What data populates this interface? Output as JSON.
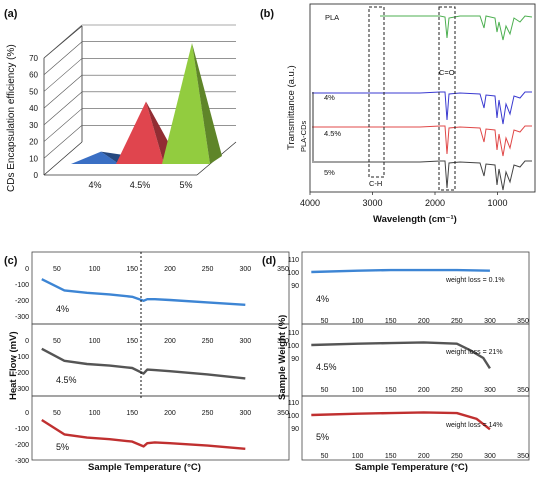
{
  "chart_data": [
    {
      "panel": "(a)",
      "type": "bar",
      "subtype": "3d-pyramid",
      "ylabel": "CDs Encapsulation efficiency (%)",
      "ylim": [
        0,
        70
      ],
      "yticks": [
        "0",
        "10",
        "20",
        "30",
        "40",
        "50",
        "60",
        "70"
      ],
      "categories": [
        "4%",
        "4.5%",
        "5%"
      ],
      "values": [
        5,
        35,
        70
      ],
      "colors": [
        "#3a6fc4",
        "#e0454e",
        "#92cc3f"
      ]
    },
    {
      "panel": "(b)",
      "type": "line",
      "xlabel": "Wavelength (cm⁻¹)",
      "ylabel": "Transmittance (a.u.)",
      "xlim": [
        4000,
        400
      ],
      "xticks": [
        "4000",
        "3000",
        "2000",
        "1000"
      ],
      "group_label": "PLA-CDs",
      "annotations": [
        "C-H",
        "C=O"
      ],
      "series": [
        {
          "name": "PLA",
          "color": "#4caf50"
        },
        {
          "name": "4%",
          "color": "#3a3ad0"
        },
        {
          "name": "4.5%",
          "color": "#e04848"
        },
        {
          "name": "5%",
          "color": "#444444"
        }
      ]
    },
    {
      "panel": "(c)",
      "type": "line",
      "xlabel": "Sample Temperature (°C)",
      "ylabel": "Heat Flow (mV)",
      "xticks": [
        "50",
        "100",
        "150",
        "200",
        "250",
        "300",
        "350"
      ],
      "yticks": [
        "0",
        "-100",
        "-200",
        "-300"
      ],
      "series": [
        {
          "name": "4%",
          "color": "#3d85d4",
          "x": [
            30,
            60,
            90,
            120,
            150,
            165,
            170,
            180,
            200,
            250,
            300
          ],
          "y": [
            -70,
            -140,
            -155,
            -165,
            -180,
            -205,
            -195,
            -195,
            -200,
            -215,
            -230
          ]
        },
        {
          "name": "4.5%",
          "color": "#555555",
          "x": [
            30,
            60,
            90,
            120,
            150,
            165,
            170,
            180,
            200,
            250,
            300
          ],
          "y": [
            -55,
            -130,
            -150,
            -160,
            -175,
            -210,
            -185,
            -188,
            -195,
            -215,
            -240
          ]
        },
        {
          "name": "5%",
          "color": "#c03030",
          "x": [
            30,
            60,
            90,
            120,
            150,
            165,
            170,
            180,
            200,
            250,
            300
          ],
          "y": [
            -50,
            -140,
            -160,
            -170,
            -185,
            -215,
            -195,
            -190,
            -195,
            -210,
            -230
          ]
        }
      ]
    },
    {
      "panel": "(d)",
      "type": "line",
      "xlabel": "Sample Temperature (°C)",
      "ylabel": "Sample Weight (%)",
      "xticks": [
        "50",
        "100",
        "150",
        "200",
        "250",
        "300",
        "350"
      ],
      "yticks": [
        "90",
        "100",
        "110"
      ],
      "series": [
        {
          "name": "4%",
          "annotation": "weight loss = 0.1%",
          "color": "#3d85d4",
          "x": [
            30,
            100,
            150,
            200,
            250,
            300
          ],
          "y": [
            100,
            101,
            101.5,
            101.5,
            101.5,
            101
          ]
        },
        {
          "name": "4.5%",
          "annotation": "weight loss = 21%",
          "color": "#555555",
          "x": [
            30,
            100,
            150,
            200,
            250,
            270,
            290,
            300
          ],
          "y": [
            100,
            101,
            101.5,
            102,
            101,
            96,
            90,
            82
          ]
        },
        {
          "name": "5%",
          "annotation": "weight loss = 14%",
          "color": "#c03030",
          "x": [
            30,
            100,
            150,
            200,
            250,
            280,
            300
          ],
          "y": [
            100,
            101,
            101.5,
            102,
            101.5,
            97,
            89
          ]
        }
      ]
    }
  ]
}
